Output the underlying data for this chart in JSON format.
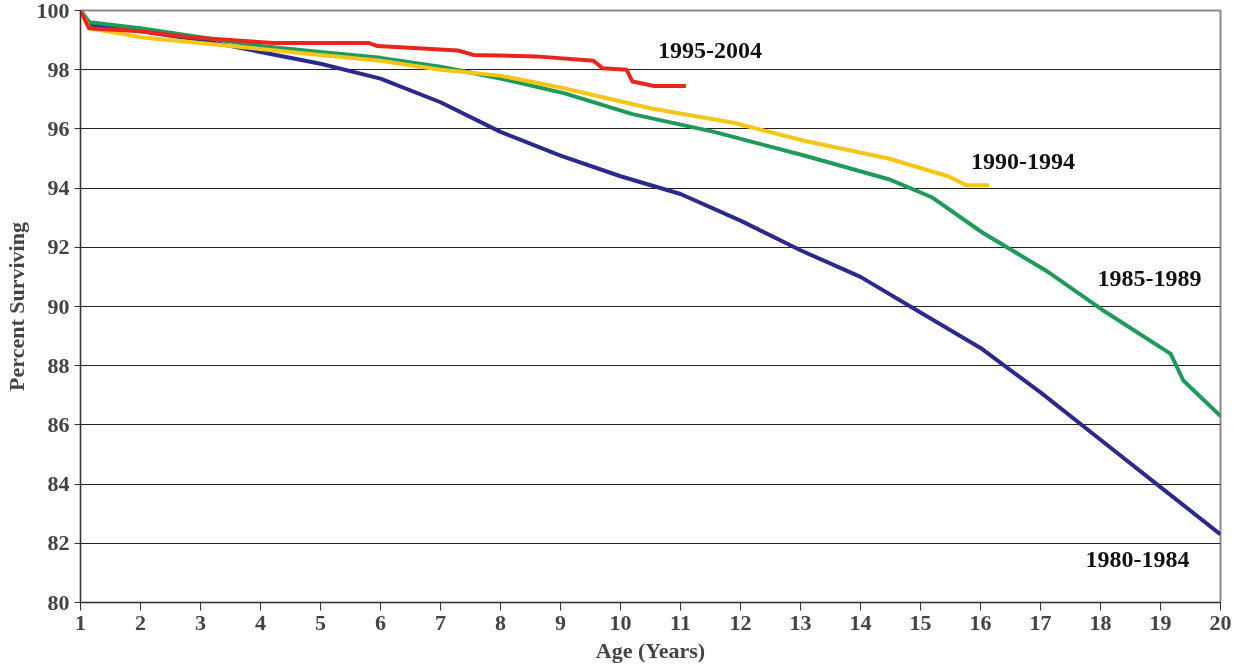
{
  "chart_data": {
    "type": "line",
    "xlabel": "Age (Years)",
    "ylabel": "Percent Surviving",
    "xlim": [
      1,
      20
    ],
    "ylim": [
      80,
      100
    ],
    "xticks": [
      1,
      2,
      3,
      4,
      5,
      6,
      7,
      8,
      9,
      10,
      11,
      12,
      13,
      14,
      15,
      16,
      17,
      18,
      19,
      20
    ],
    "yticks": [
      80,
      82,
      84,
      86,
      88,
      90,
      92,
      94,
      96,
      98,
      100
    ],
    "grid": "y",
    "marker": "none",
    "line_style": "solid",
    "series": [
      {
        "name": "1980-1984",
        "color": "#2b2a8c",
        "x": [
          1,
          1.15,
          2,
          3,
          4,
          5,
          6,
          7,
          8,
          9,
          10,
          11,
          12,
          13,
          14,
          15,
          16,
          17,
          18,
          19,
          20
        ],
        "values": [
          100,
          99.5,
          99.3,
          99.0,
          98.6,
          98.2,
          97.7,
          96.9,
          95.9,
          95.1,
          94.4,
          93.8,
          92.9,
          91.9,
          91.0,
          89.8,
          88.6,
          87.1,
          85.5,
          83.9,
          82.3
        ]
      },
      {
        "name": "1985-1989",
        "color": "#1f9a5a",
        "x": [
          1,
          1.15,
          2,
          3,
          4,
          5,
          6,
          7,
          8,
          9.07,
          10.2,
          11.56,
          13.06,
          14.47,
          15.18,
          16.03,
          17.1,
          18.02,
          19.17,
          19.38,
          20
        ],
        "values": [
          100,
          99.6,
          99.4,
          99.1,
          98.8,
          98.6,
          98.4,
          98.1,
          97.7,
          97.2,
          96.5,
          95.9,
          95.1,
          94.3,
          93.7,
          92.5,
          91.2,
          89.9,
          88.4,
          87.5,
          86.3
        ]
      },
      {
        "name": "1990-1994",
        "color": "#f5c518",
        "x": [
          1,
          1.15,
          2,
          3,
          4,
          5,
          6,
          7,
          8,
          9,
          10.5,
          11.9,
          13.06,
          14.47,
          15.46,
          15.76,
          16.14
        ],
        "values": [
          100,
          99.4,
          99.1,
          98.9,
          98.7,
          98.5,
          98.3,
          98.0,
          97.8,
          97.4,
          96.7,
          96.2,
          95.6,
          95.0,
          94.4,
          94.1,
          94.1
        ]
      },
      {
        "name": "1995-2004",
        "color": "#e8261f",
        "x": [
          1,
          1.14,
          2,
          2.81,
          4.22,
          5.81,
          5.95,
          7.29,
          7.55,
          8.6,
          9.55,
          9.7,
          10.1,
          10.2,
          10.56,
          11.09
        ],
        "values": [
          100,
          99.4,
          99.3,
          99.1,
          98.9,
          98.9,
          98.8,
          98.65,
          98.5,
          98.45,
          98.3,
          98.05,
          98.0,
          97.6,
          97.45,
          97.45
        ]
      }
    ]
  }
}
